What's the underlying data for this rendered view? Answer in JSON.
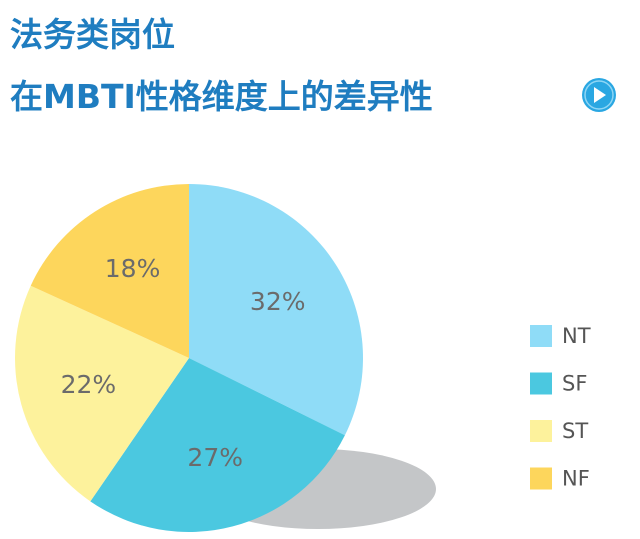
{
  "chart_data": {
    "type": "pie",
    "title": "法务类岗位",
    "subtitle": "在MBTI性格维度上的差异性",
    "categories": [
      "NT",
      "SF",
      "ST",
      "NF"
    ],
    "values": [
      32,
      27,
      22,
      18
    ],
    "value_labels": [
      "32%",
      "27%",
      "22%",
      "18%"
    ],
    "colors": [
      "#8fdcf7",
      "#4bc8e0",
      "#fdf29c",
      "#fdd65c"
    ],
    "legend": "right"
  }
}
